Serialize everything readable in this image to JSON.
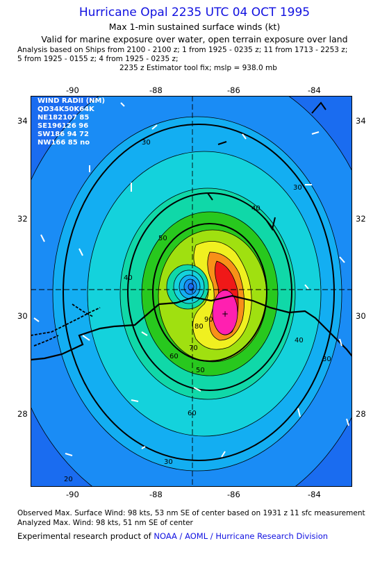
{
  "header": {
    "title": "Hurricane Opal 2235 UTC 04 OCT 1995",
    "subtitle": "Max 1-min sustained surface winds (kt)",
    "validity": "Valid for marine exposure over water, open terrain exposure over land",
    "analysis_line1": "Analysis based on  Ships from 2100 - 2100 z;  1 from 1925 - 0235 z;  11 from 1713 - 2253 z;",
    "analysis_line2": "5 from 1925 - 0155 z;  4 from 1925 - 0235 z;",
    "analysis_line3": "2235 z Estimator tool fix; mslp = 938.0 mb"
  },
  "map": {
    "lon_ticks": [
      "-90",
      "-88",
      "-86",
      "-84"
    ],
    "lat_ticks": [
      "34",
      "32",
      "30",
      "28"
    ],
    "center_marker": "+"
  },
  "wind_radii": {
    "title": "WIND RADII (NM)",
    "header": "QD34K50K64K",
    "rows": [
      "NE182107 85",
      "SE196126 96",
      "SW186 94 72",
      "NW166 85 no"
    ]
  },
  "contour_labels": {
    "c30_a": "30",
    "c30_b": "30",
    "c30_c": "30",
    "c30_d": "30",
    "c40_a": "40",
    "c40_b": "40",
    "c40_c": "40",
    "c50_a": "50",
    "c50_b": "50",
    "c60_a": "60",
    "c60_b": "60",
    "c70": "70",
    "c80": "80",
    "c90": "90",
    "c20": "20"
  },
  "footer": {
    "observed": "Observed Max. Surface Wind: 98 kts, 53 nm SE of center based on 1931 z 11 sfc measurement",
    "analyzed": "Analyzed Max. Wind: 98 kts, 51 nm SE of center",
    "product_prefix": "Experimental research product of",
    "org": "NOAA / AOML / Hurricane Research Division"
  },
  "colors": {
    "outer": "#1a6cf0",
    "band30": "#1a8cf5",
    "band40": "#13aef2",
    "band50": "#14d2dc",
    "band60": "#10d8a8",
    "band70": "#28c81e",
    "band80": "#a0e010",
    "band90": "#f0f020",
    "band95": "#f89018",
    "band98": "#f01818",
    "peak": "#ff20b0",
    "title_blue": "#1010e0"
  }
}
